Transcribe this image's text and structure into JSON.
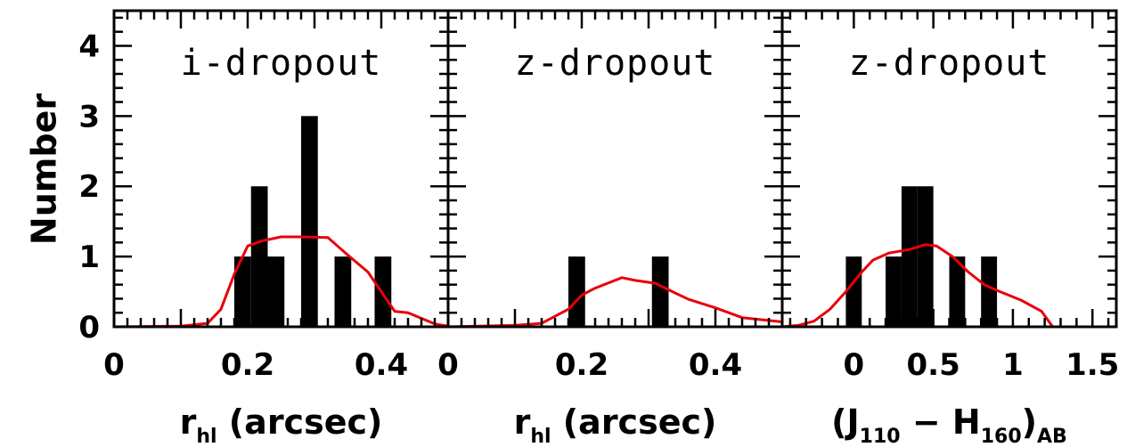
{
  "chart_data": [
    {
      "type": "bar",
      "title": "i-dropout",
      "xlabel_main": "r",
      "xlabel_sub": "hl",
      "xlabel_rest": " (arcsec)",
      "ylabel": "Number",
      "xlim": [
        0,
        0.5
      ],
      "ylim": [
        0,
        4.5
      ],
      "xticks": [
        0,
        0.2,
        0.4
      ],
      "xtick_labels": [
        "0",
        "0.2",
        "0.4"
      ],
      "yticks": [
        0,
        1,
        2,
        3,
        4
      ],
      "ytick_labels": [
        "0",
        "1",
        "2",
        "3",
        "4"
      ],
      "bar_width": 0.025,
      "bars": [
        {
          "x": 0.18,
          "value": 1
        },
        {
          "x": 0.205,
          "value": 2
        },
        {
          "x": 0.23,
          "value": 1
        },
        {
          "x": 0.28,
          "value": 3
        },
        {
          "x": 0.33,
          "value": 1
        },
        {
          "x": 0.39,
          "value": 1
        }
      ],
      "curve": {
        "color": "#e8000b",
        "x": [
          0.0,
          0.1,
          0.14,
          0.16,
          0.18,
          0.2,
          0.22,
          0.25,
          0.28,
          0.32,
          0.35,
          0.38,
          0.4,
          0.42,
          0.44,
          0.46,
          0.48,
          0.5
        ],
        "y": [
          0.0,
          0.01,
          0.05,
          0.25,
          0.75,
          1.15,
          1.22,
          1.28,
          1.28,
          1.27,
          1.02,
          0.78,
          0.5,
          0.22,
          0.2,
          0.12,
          0.04,
          0.01
        ]
      }
    },
    {
      "type": "bar",
      "title": "z-dropout",
      "xlabel_main": "r",
      "xlabel_sub": "hl",
      "xlabel_rest": " (arcsec)",
      "xlim": [
        0,
        0.5
      ],
      "ylim": [
        0,
        4.5
      ],
      "xticks": [
        0,
        0.2,
        0.4
      ],
      "xtick_labels": [
        "0",
        "0.2",
        "0.4"
      ],
      "yticks": [
        0,
        1,
        2,
        3,
        4
      ],
      "bar_width": 0.025,
      "bars": [
        {
          "x": 0.18,
          "value": 1
        },
        {
          "x": 0.305,
          "value": 1
        }
      ],
      "curve": {
        "color": "#e8000b",
        "x": [
          0.0,
          0.1,
          0.14,
          0.18,
          0.2,
          0.22,
          0.26,
          0.28,
          0.31,
          0.34,
          0.36,
          0.4,
          0.44,
          0.5
        ],
        "y": [
          0.0,
          0.02,
          0.05,
          0.25,
          0.45,
          0.55,
          0.7,
          0.66,
          0.62,
          0.48,
          0.39,
          0.27,
          0.13,
          0.07
        ]
      }
    },
    {
      "type": "bar",
      "title": "z-dropout",
      "xlabel_parts": [
        "(J",
        "110",
        " − H",
        "160",
        ")",
        "AB"
      ],
      "xlim": [
        -0.45,
        1.65
      ],
      "ylim": [
        0,
        4.5
      ],
      "xticks": [
        0,
        0.5,
        1,
        1.5
      ],
      "xtick_labels": [
        "0",
        "0.5",
        "1",
        "1.5"
      ],
      "yticks": [
        0,
        1,
        2,
        3,
        4
      ],
      "bar_width": 0.1,
      "bars": [
        {
          "x": -0.05,
          "value": 1
        },
        {
          "x": 0.2,
          "value": 1
        },
        {
          "x": 0.3,
          "value": 2
        },
        {
          "x": 0.4,
          "value": 2
        },
        {
          "x": 0.6,
          "value": 1
        },
        {
          "x": 0.8,
          "value": 1
        }
      ],
      "curve": {
        "color": "#e8000b",
        "x": [
          -0.45,
          -0.35,
          -0.25,
          -0.15,
          -0.05,
          0.05,
          0.12,
          0.22,
          0.35,
          0.45,
          0.52,
          0.62,
          0.72,
          0.82,
          0.92,
          1.05,
          1.18,
          1.25,
          1.4,
          1.65
        ],
        "y": [
          0.0,
          0.02,
          0.08,
          0.25,
          0.5,
          0.78,
          0.95,
          1.05,
          1.1,
          1.17,
          1.15,
          1.0,
          0.78,
          0.6,
          0.5,
          0.38,
          0.22,
          0.0,
          0.0,
          0.0
        ]
      }
    }
  ]
}
